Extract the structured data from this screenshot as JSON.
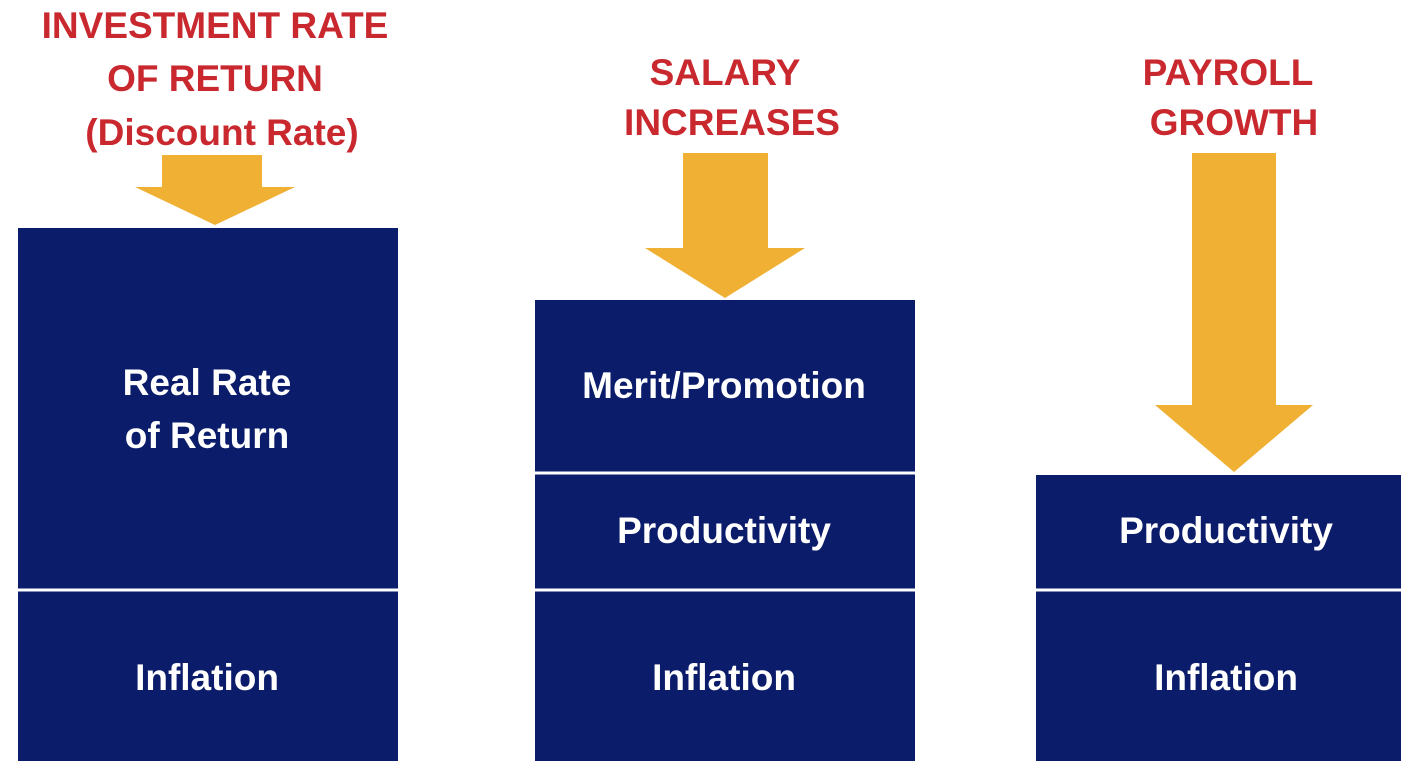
{
  "columns": [
    {
      "title": [
        "INVESTMENT RATE",
        "OF RETURN",
        "(Discount Rate)"
      ],
      "blocks": [
        {
          "label": [
            "Real Rate",
            "of Return"
          ]
        },
        {
          "label": [
            "Inflation"
          ]
        }
      ]
    },
    {
      "title": [
        "SALARY",
        "INCREASES"
      ],
      "blocks": [
        {
          "label": [
            "Merit/Promotion"
          ]
        },
        {
          "label": [
            "Productivity"
          ]
        },
        {
          "label": [
            "Inflation"
          ]
        }
      ]
    },
    {
      "title": [
        "PAYROLL",
        "GROWTH"
      ],
      "blocks": [
        {
          "label": [
            "Productivity"
          ]
        },
        {
          "label": [
            "Inflation"
          ]
        }
      ]
    }
  ]
}
